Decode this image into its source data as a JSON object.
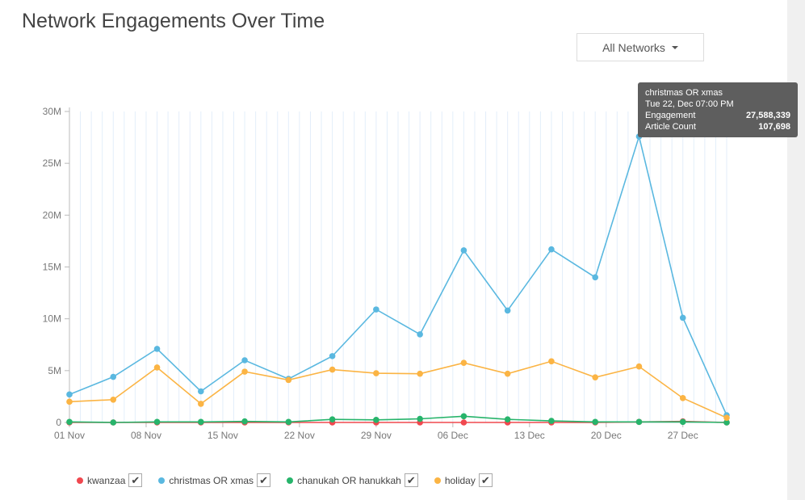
{
  "title": "Network Engagements Over Time",
  "dropdown": {
    "label": "All Networks"
  },
  "tooltip": {
    "series": "christmas OR xmas",
    "date": "Tue 22, Dec 07:00 PM",
    "rows": [
      {
        "label": "Engagement",
        "value": "27,588,339"
      },
      {
        "label": "Article Count",
        "value": "107,698"
      }
    ]
  },
  "legend_check": "✔",
  "chart_data": {
    "type": "line",
    "title": "Network Engagements Over Time",
    "xlabel": "",
    "ylabel": "",
    "ylim": [
      0,
      30000000
    ],
    "yticks": [
      {
        "v": 0,
        "label": "0"
      },
      {
        "v": 5000000,
        "label": "5M"
      },
      {
        "v": 10000000,
        "label": "10M"
      },
      {
        "v": 15000000,
        "label": "15M"
      },
      {
        "v": 20000000,
        "label": "20M"
      },
      {
        "v": 25000000,
        "label": "25M"
      },
      {
        "v": 30000000,
        "label": "30M"
      }
    ],
    "xticks": [
      {
        "day": 0,
        "label": "01 Nov"
      },
      {
        "day": 7,
        "label": "08 Nov"
      },
      {
        "day": 14,
        "label": "15 Nov"
      },
      {
        "day": 21,
        "label": "22 Nov"
      },
      {
        "day": 28,
        "label": "29 Nov"
      },
      {
        "day": 35,
        "label": "06 Dec"
      },
      {
        "day": 42,
        "label": "13 Dec"
      },
      {
        "day": 49,
        "label": "20 Dec"
      },
      {
        "day": 56,
        "label": "27 Dec"
      }
    ],
    "x_days": [
      0,
      4,
      8,
      12,
      16,
      20,
      24,
      28,
      32,
      36,
      40,
      44,
      48,
      52,
      56,
      60
    ],
    "xlim_days": [
      0,
      60
    ],
    "grid": true,
    "legend_position": "bottom-left",
    "series": [
      {
        "name": "kwanzaa",
        "color": "#f0484f",
        "values": [
          0,
          0,
          0,
          0,
          0,
          0,
          0,
          0,
          0,
          0,
          0,
          0,
          0,
          50000,
          100000,
          0
        ]
      },
      {
        "name": "christmas OR xmas",
        "color": "#5ab8e0",
        "values": [
          2700000,
          4400000,
          7100000,
          3000000,
          6000000,
          4200000,
          6400000,
          10900000,
          8500000,
          16600000,
          10800000,
          16700000,
          14000000,
          27588339,
          10100000,
          700000
        ]
      },
      {
        "name": "chanukah OR hanukkah",
        "color": "#27b46b",
        "values": [
          50000,
          0,
          50000,
          50000,
          100000,
          50000,
          300000,
          250000,
          350000,
          600000,
          300000,
          150000,
          50000,
          50000,
          50000,
          0
        ]
      },
      {
        "name": "holiday",
        "color": "#fbb444",
        "values": [
          2000000,
          2200000,
          5300000,
          1800000,
          4900000,
          4100000,
          5100000,
          4750000,
          4700000,
          5750000,
          4700000,
          5900000,
          4350000,
          5400000,
          2350000,
          450000
        ]
      }
    ]
  }
}
